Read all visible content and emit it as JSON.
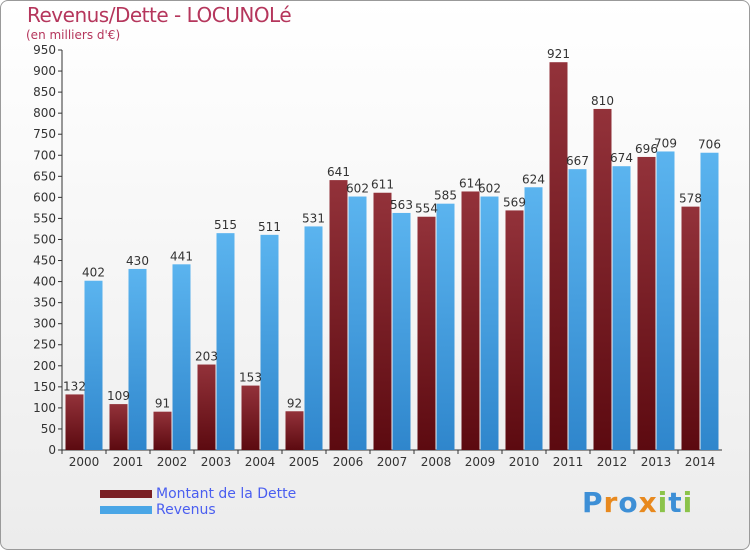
{
  "header": {
    "title": "Revenus/Dette - LOCUNOLé",
    "subtitle": "(en milliers d'€)"
  },
  "colors": {
    "debt": "#7a1f24",
    "revenue": "#4aa6e6",
    "title": "#b5365c",
    "legend_text": "#4a5ef0"
  },
  "legend": [
    {
      "label": "Montant de la Dette",
      "color": "#7a1f24"
    },
    {
      "label": "Revenus",
      "color": "#4aa6e6"
    }
  ],
  "brand": {
    "letters": [
      "P",
      "r",
      "o",
      "x",
      "i",
      "t",
      "i"
    ],
    "colors": [
      "#3d8fd6",
      "#e8891e",
      "#3d8fd6",
      "#e8891e",
      "#8bc34a",
      "#3d8fd6",
      "#8bc34a"
    ]
  },
  "chart_data": {
    "type": "bar",
    "title": "Revenus/Dette - LOCUNOLé",
    "subtitle": "(en milliers d'€)",
    "categories": [
      "2000",
      "2001",
      "2002",
      "2003",
      "2004",
      "2005",
      "2006",
      "2007",
      "2008",
      "2009",
      "2010",
      "2011",
      "2012",
      "2013",
      "2014"
    ],
    "series": [
      {
        "name": "Montant de la Dette",
        "values": [
          132,
          109,
          91,
          203,
          153,
          92,
          641,
          611,
          554,
          614,
          569,
          921,
          810,
          696,
          578
        ]
      },
      {
        "name": "Revenus",
        "values": [
          402,
          430,
          441,
          515,
          511,
          531,
          602,
          563,
          585,
          602,
          624,
          667,
          674,
          709,
          706
        ]
      }
    ],
    "ylim": [
      0,
      950
    ],
    "yticks": [
      0,
      50,
      100,
      150,
      200,
      250,
      300,
      350,
      400,
      450,
      500,
      550,
      600,
      650,
      700,
      750,
      800,
      850,
      900,
      950
    ],
    "grid": false,
    "legend_position": "bottom-left"
  }
}
